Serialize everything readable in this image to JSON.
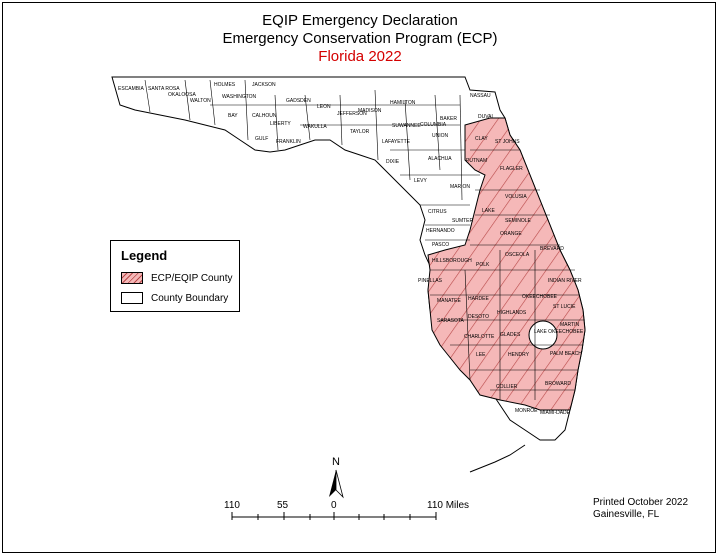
{
  "title": {
    "line1": "EQIP Emergency Declaration",
    "line2": "Emergency Conservation Program (ECP)",
    "line3": "Florida 2022"
  },
  "legend": {
    "title": "Legend",
    "items": [
      {
        "label": "ECP/EQIP County",
        "color": "#f5b8b8"
      },
      {
        "label": "County Boundary",
        "color": "#ffffff"
      }
    ]
  },
  "north_arrow": {
    "label": "N"
  },
  "scale_bar": {
    "ticks": [
      "110",
      "55",
      "0",
      "110 Miles"
    ]
  },
  "printed": {
    "line1": "Printed October 2022",
    "line2": "Gainesville, FL"
  },
  "counties": {
    "panhandle": [
      "ESCAMBIA",
      "SANTA ROSA",
      "OKALOOSA",
      "WALTON",
      "HOLMES",
      "WASHINGTON",
      "JACKSON",
      "BAY",
      "CALHOUN",
      "GADSDEN",
      "LIBERTY",
      "GULF",
      "FRANKLIN",
      "LEON",
      "WAKULLA",
      "JEFFERSON",
      "MADISON",
      "TAYLOR",
      "HAMILTON",
      "SUWANNEE",
      "LAFAYETTE",
      "DIXIE",
      "COLUMBIA",
      "BAKER",
      "UNION",
      "NASSAU",
      "DUVAL",
      "ALACHUA",
      "LEVY",
      "MARION",
      "CITRUS",
      "SUMTER",
      "HERNANDO",
      "PASCO",
      "MONROE",
      "MIAMI-DADE"
    ],
    "ecp": [
      "CLAY",
      "ST JOHNS",
      "PUTNAM",
      "FLAGLER",
      "VOLUSIA",
      "LAKE",
      "SEMINOLE",
      "ORANGE",
      "BREVARD",
      "OSCEOLA",
      "POLK",
      "HILLSBOROUGH",
      "PINELLAS",
      "MANATEE",
      "HARDEE",
      "DESOTO",
      "SARASOTA",
      "HIGHLANDS",
      "GLADES",
      "OKEECHOBEE",
      "INDIAN RIVER",
      "ST LUCIE",
      "MARTIN",
      "CHARLOTTE",
      "LEE",
      "HENDRY",
      "PALM BEACH",
      "COLLIER",
      "BROWARD"
    ],
    "lake_label": "LAKE OKEECHOBEE"
  },
  "colors": {
    "ecp_fill": "#f5b8b8",
    "hatch": "#b84848",
    "title_red": "#d40000"
  }
}
